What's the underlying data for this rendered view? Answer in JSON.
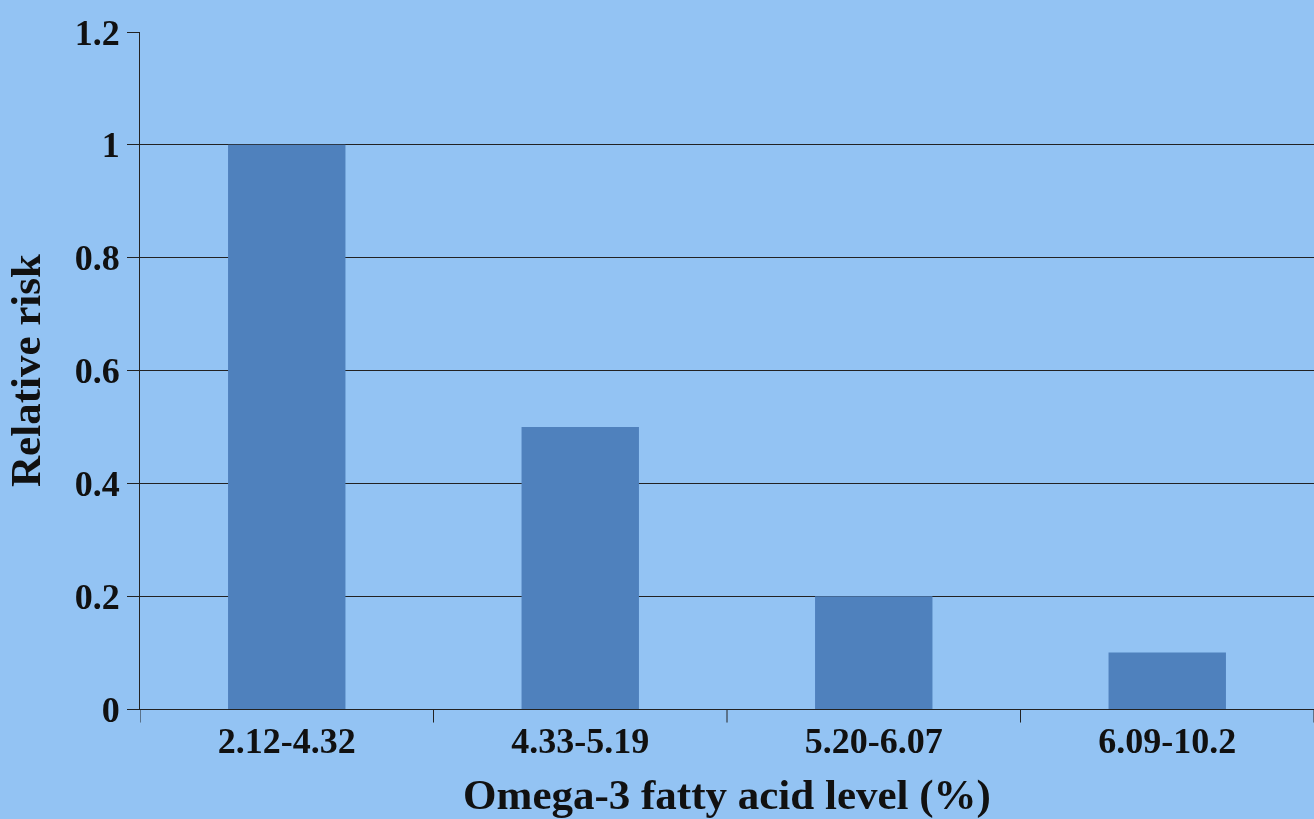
{
  "chart_data": {
    "type": "bar",
    "xlabel": "Omega-3 fatty acid level (%)",
    "ylabel": "Relative risk",
    "categories": [
      "2.12-4.32",
      "4.33-5.19",
      "5.20-6.07",
      "6.09-10.2"
    ],
    "values": [
      1,
      0.5,
      0.2,
      0.1
    ],
    "color": "#4f81bd",
    "ylim": [
      0,
      1.2
    ],
    "yticks": [
      0,
      0.2,
      0.4,
      0.6,
      0.8,
      1,
      1.2
    ],
    "grid": "y"
  }
}
